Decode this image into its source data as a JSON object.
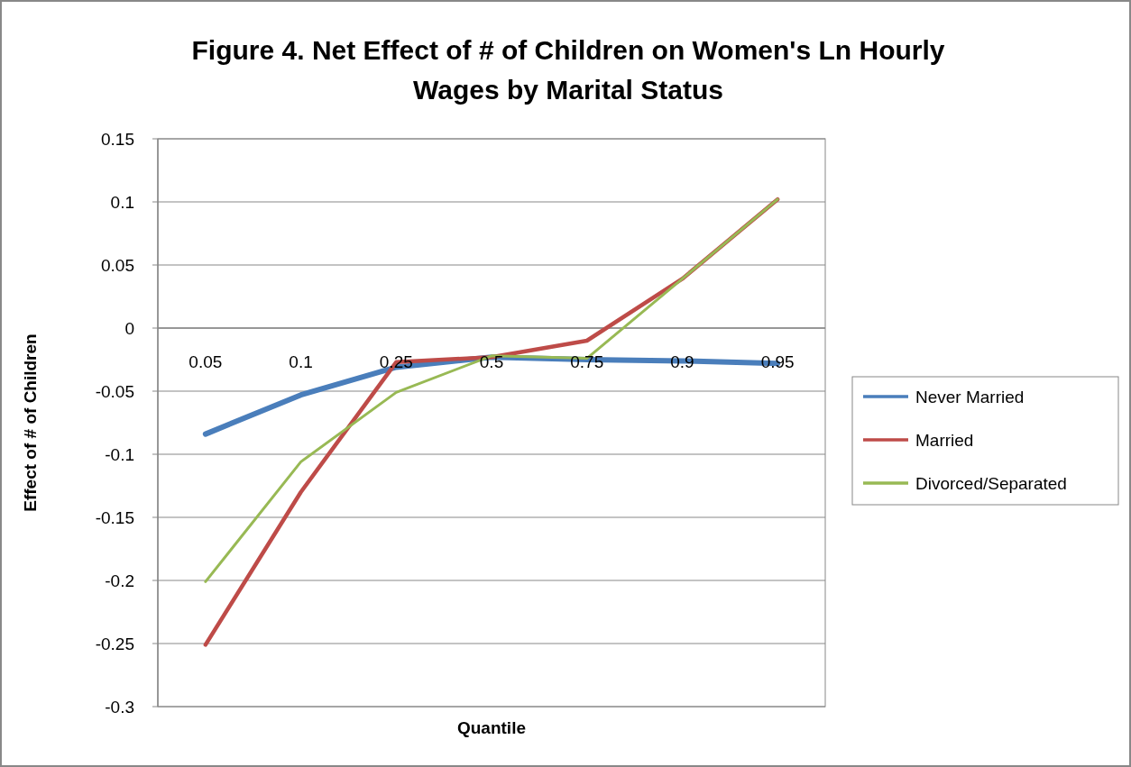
{
  "chart_data": {
    "type": "line",
    "title": "Figure 4. Net Effect of # of Children on Women's Ln Hourly Wages by Marital Status",
    "xlabel": "Quantile",
    "ylabel": "Effect of # of Children",
    "categories": [
      "0.05",
      "0.1",
      "0.25",
      "0.5",
      "0.75",
      "0.9",
      "0.95"
    ],
    "series": [
      {
        "name": "Never Married",
        "color": "#4a7ebb",
        "values": [
          -0.084,
          -0.053,
          -0.031,
          -0.023,
          -0.025,
          -0.026,
          -0.028
        ]
      },
      {
        "name": "Married",
        "color": "#be4b48",
        "values": [
          -0.251,
          -0.13,
          -0.027,
          -0.023,
          -0.01,
          0.039,
          0.102
        ]
      },
      {
        "name": "Divorced/Separated",
        "color": "#98b954",
        "values": [
          -0.201,
          -0.106,
          -0.051,
          -0.022,
          -0.024,
          0.039,
          0.102
        ]
      }
    ],
    "ylim": [
      -0.3,
      0.15
    ],
    "yticks": [
      -0.3,
      -0.25,
      -0.2,
      -0.15,
      -0.1,
      -0.05,
      0,
      0.05,
      0.1,
      0.15
    ],
    "grid": "y",
    "legend": "right",
    "marker": "none",
    "line_style": "solid"
  }
}
